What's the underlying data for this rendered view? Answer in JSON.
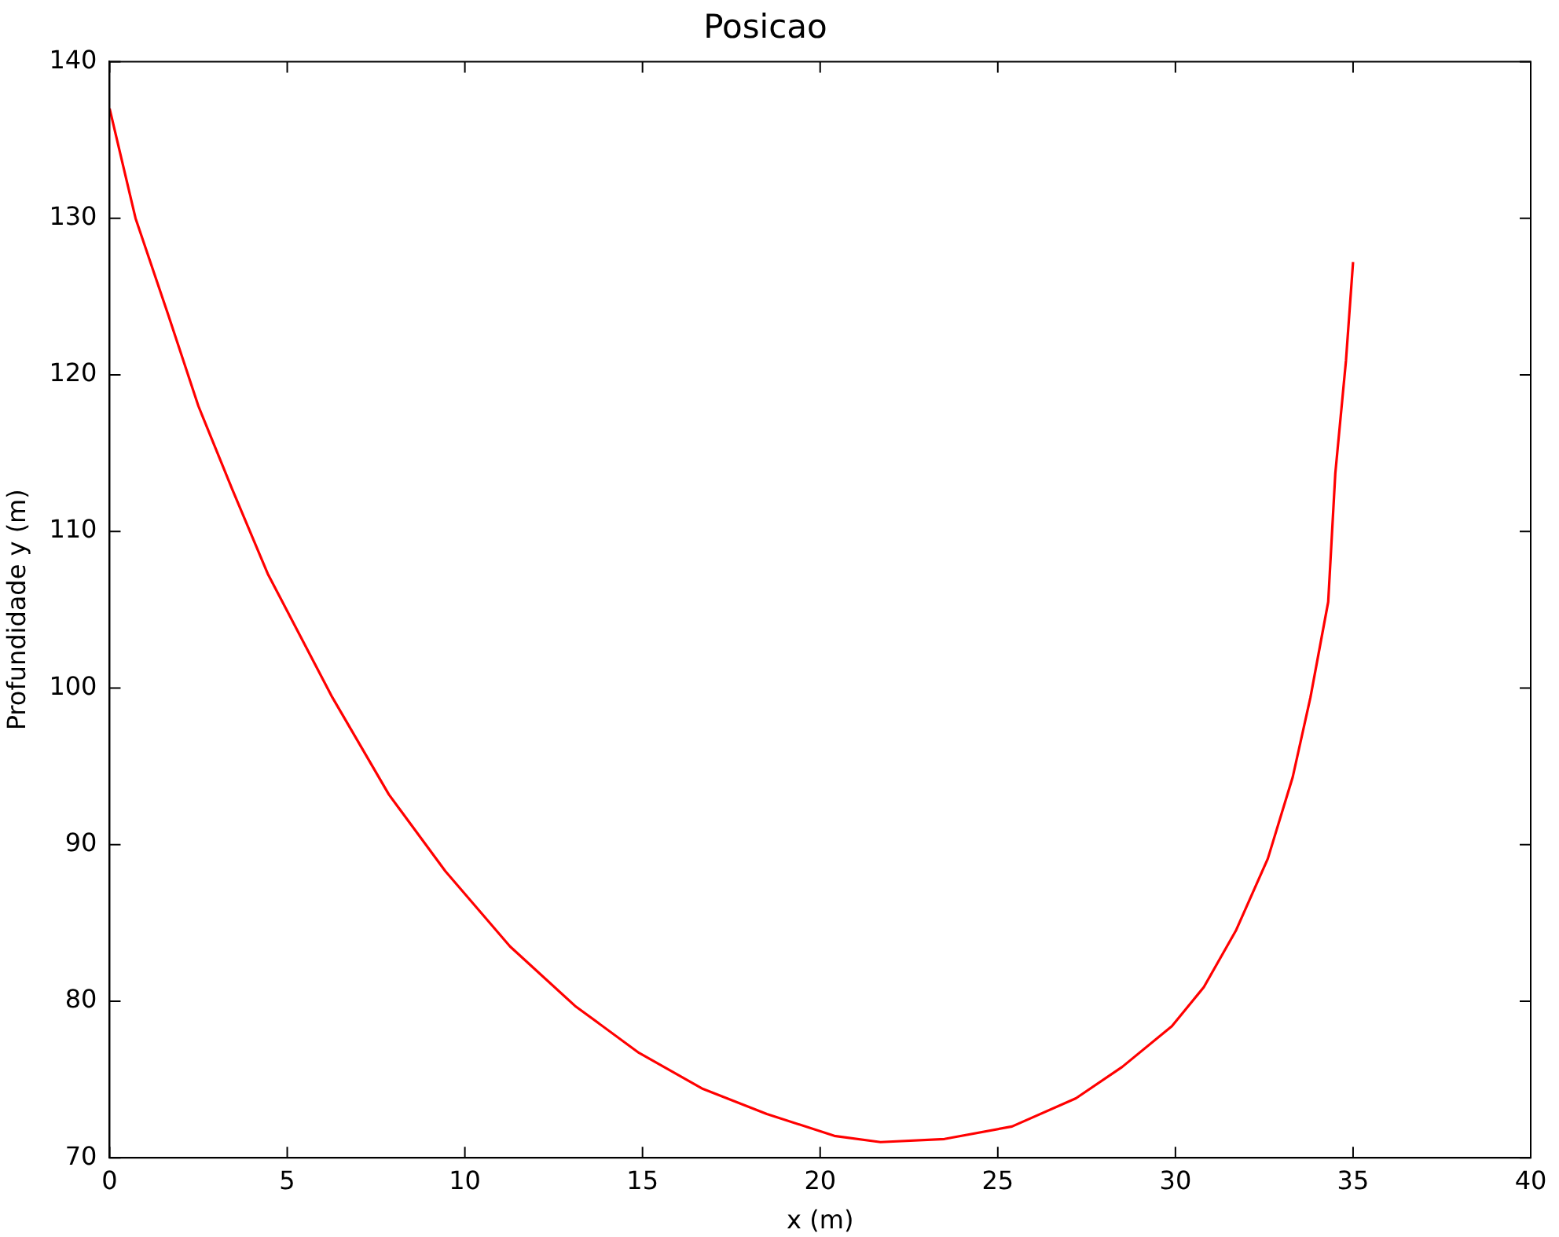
{
  "chart_data": {
    "type": "line",
    "title": "Posicao",
    "xlabel": "x (m)",
    "ylabel": "Profundidade y (m)",
    "x": [
      0,
      0.73,
      1.64,
      2.5,
      3.45,
      4.45,
      6.27,
      7.86,
      9.45,
      11.27,
      13.1,
      14.9,
      16.7,
      18.5,
      20.4,
      21.7,
      23.5,
      25.4,
      27.2,
      28.5,
      29.9,
      30.8,
      31.7,
      32.6,
      33.3,
      33.8,
      34.3,
      34.5,
      34.8,
      35.0
    ],
    "series": [
      {
        "color": "#ff0000",
        "values": [
          137,
          130,
          123.9,
          118,
          112.7,
          107.3,
          99.4,
          93.2,
          88.3,
          83.5,
          79.7,
          76.7,
          74.4,
          72.8,
          71.4,
          71.0,
          71.2,
          72.0,
          73.8,
          75.8,
          78.4,
          80.9,
          84.5,
          89.1,
          94.3,
          99.4,
          105.5,
          113.7,
          120.9,
          127.2
        ]
      }
    ],
    "xlim": [
      0,
      40
    ],
    "xticks": [
      0,
      5,
      10,
      15,
      20,
      25,
      30,
      35,
      40
    ],
    "ylim": [
      70,
      140
    ],
    "yticks": [
      70,
      80,
      90,
      100,
      110,
      120,
      130,
      140
    ],
    "grid": false,
    "legend": false,
    "marker": "none",
    "line_style": "solid"
  }
}
